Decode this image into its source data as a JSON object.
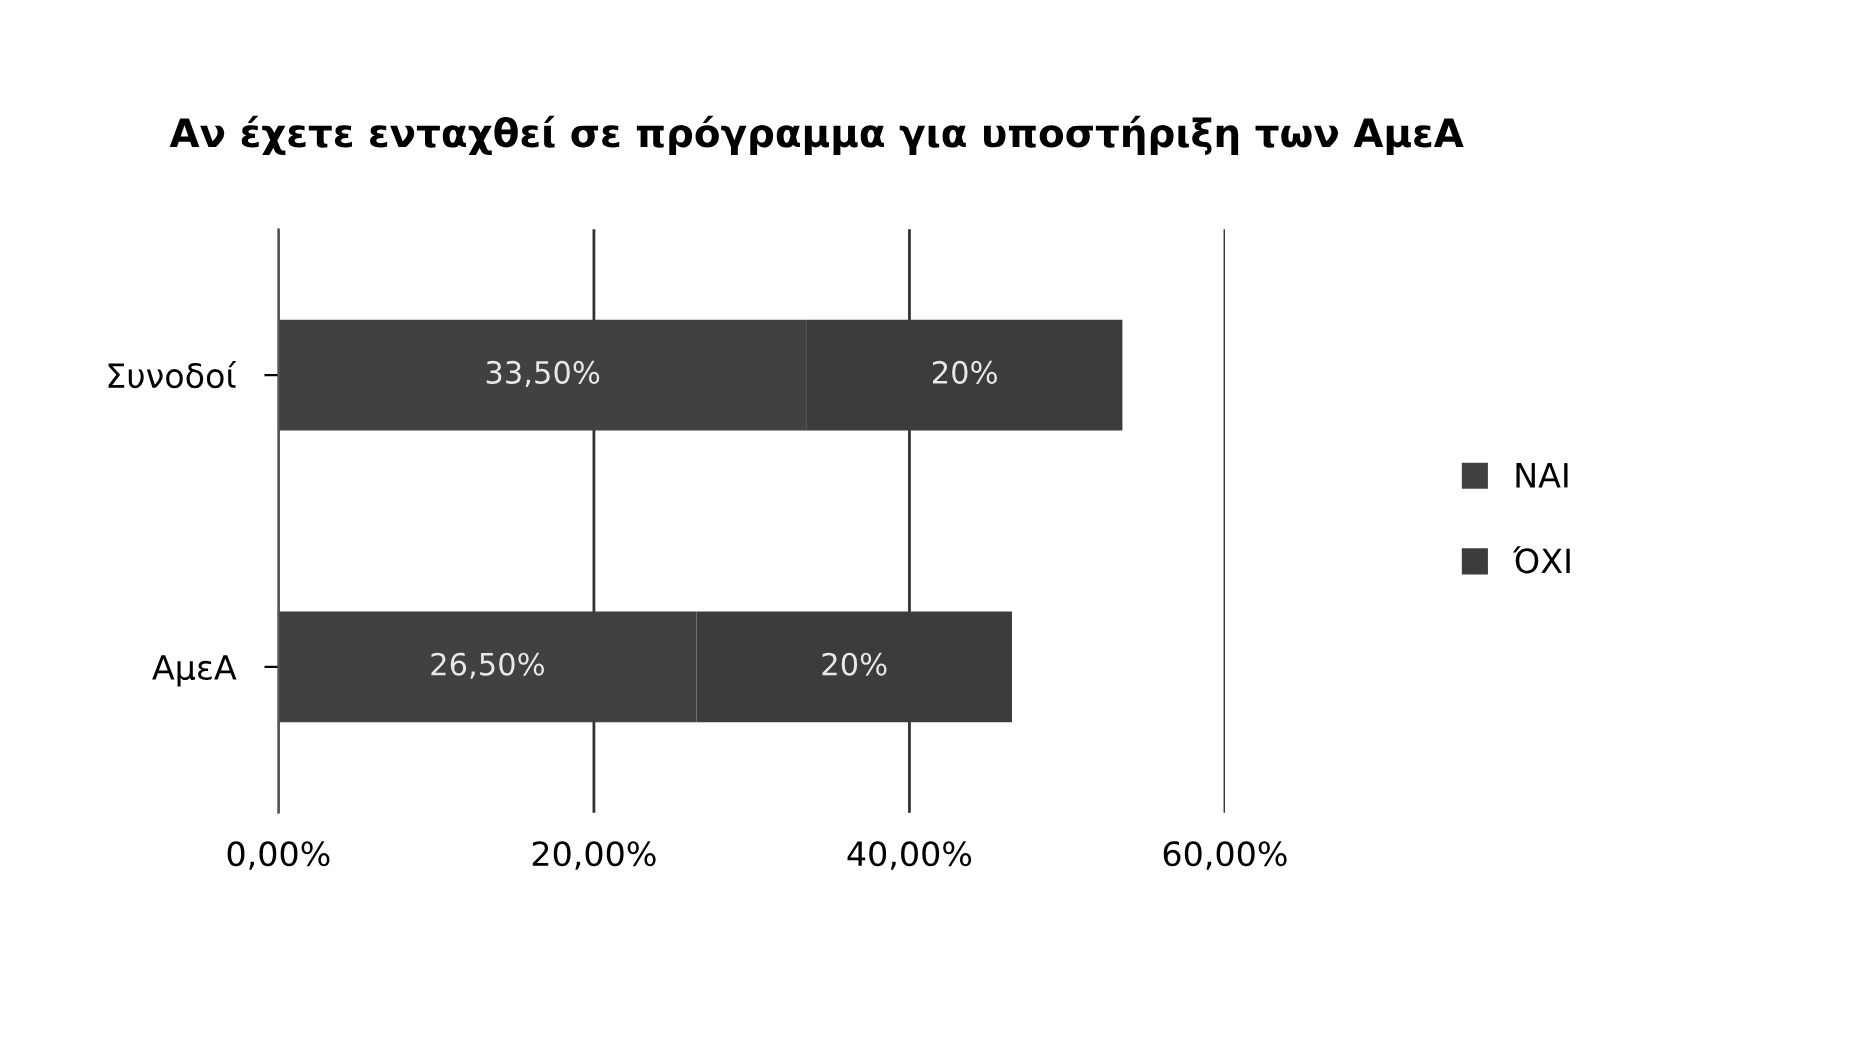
{
  "chart_data": {
    "type": "bar",
    "orientation": "horizontal",
    "stacked": true,
    "title": "Αν έχετε ενταχθεί σε πρόγραμμα για υποστήριξη των ΑμεΑ",
    "categories": [
      "Συνοδοί",
      "ΑμεΑ"
    ],
    "series": [
      {
        "name": "ΝΑΙ",
        "color": "#414141",
        "values": [
          33.5,
          26.5
        ],
        "value_labels": [
          "33,50%",
          "26,50%"
        ]
      },
      {
        "name": "ΌΧΙ",
        "color": "#3c3c3c",
        "values": [
          20,
          20
        ],
        "value_labels": [
          "20%",
          "20%"
        ]
      }
    ],
    "xlim": [
      0,
      60
    ],
    "xticks": [
      {
        "value": 0,
        "label": "0,00%"
      },
      {
        "value": 20,
        "label": "20,00%"
      },
      {
        "value": 40,
        "label": "40,00%"
      },
      {
        "value": 60,
        "label": "60,00%"
      }
    ],
    "grid": "x",
    "legend": "right"
  }
}
